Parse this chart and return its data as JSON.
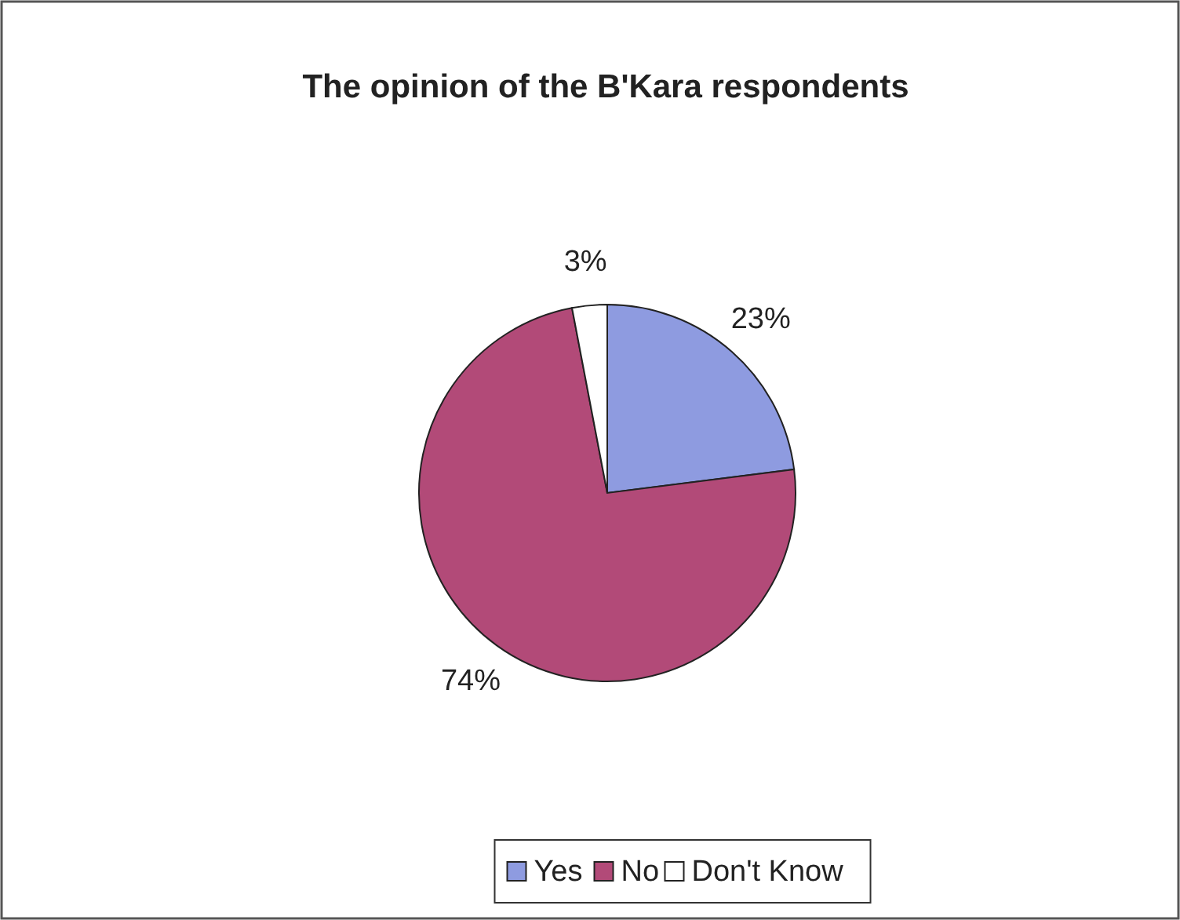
{
  "chart_data": {
    "type": "pie",
    "title": "The opinion of the B'Kara respondents",
    "categories": [
      "Yes",
      "No",
      "Don't Know"
    ],
    "values": [
      23,
      74,
      3
    ],
    "value_labels": [
      "23%",
      "74%",
      "3%"
    ],
    "colors": [
      "#8e9be0",
      "#b24a78",
      "#ffffff"
    ],
    "legend": "bottom"
  }
}
